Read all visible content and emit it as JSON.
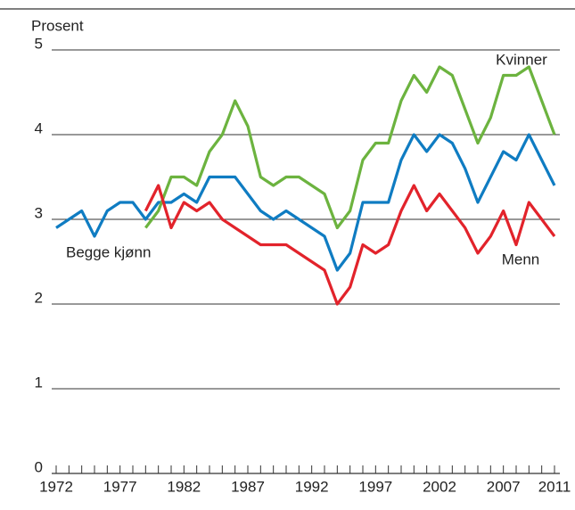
{
  "chart_data": {
    "type": "line",
    "y_label": "Prosent",
    "x": [
      1972,
      1973,
      1974,
      1975,
      1976,
      1977,
      1978,
      1979,
      1980,
      1981,
      1982,
      1983,
      1984,
      1985,
      1986,
      1987,
      1988,
      1989,
      1990,
      1991,
      1992,
      1993,
      1994,
      1995,
      1996,
      1997,
      1998,
      1999,
      2000,
      2001,
      2002,
      2003,
      2004,
      2005,
      2006,
      2007,
      2008,
      2009,
      2010,
      2011
    ],
    "series": [
      {
        "name": "Begge kjønn",
        "color": "#0f7cc2",
        "values": [
          2.9,
          3.0,
          3.1,
          2.8,
          3.1,
          3.2,
          3.2,
          3.0,
          3.2,
          3.2,
          3.3,
          3.2,
          3.5,
          3.5,
          3.5,
          3.3,
          3.1,
          3.0,
          3.1,
          3.0,
          2.9,
          2.8,
          2.4,
          2.6,
          3.2,
          3.2,
          3.2,
          3.7,
          4.0,
          3.8,
          4.0,
          3.9,
          3.6,
          3.2,
          3.5,
          3.8,
          3.7,
          4.0,
          3.7,
          3.4
        ]
      },
      {
        "name": "Kvinner",
        "color": "#6cb33f",
        "values": [
          null,
          null,
          null,
          null,
          null,
          null,
          null,
          2.9,
          3.1,
          3.5,
          3.5,
          3.4,
          3.8,
          4.0,
          4.4,
          4.1,
          3.5,
          3.4,
          3.5,
          3.5,
          3.4,
          3.3,
          2.9,
          3.1,
          3.7,
          3.9,
          3.9,
          4.4,
          4.7,
          4.5,
          4.8,
          4.7,
          4.3,
          3.9,
          4.2,
          4.7,
          4.7,
          4.8,
          4.4,
          4.0
        ]
      },
      {
        "name": "Menn",
        "color": "#e2232b",
        "values": [
          null,
          null,
          null,
          null,
          null,
          null,
          null,
          3.1,
          3.4,
          2.9,
          3.2,
          3.1,
          3.2,
          3.0,
          2.9,
          2.8,
          2.7,
          2.7,
          2.7,
          2.6,
          2.5,
          2.4,
          2.0,
          2.2,
          2.7,
          2.6,
          2.7,
          3.1,
          3.4,
          3.1,
          3.3,
          3.1,
          2.9,
          2.6,
          2.8,
          3.1,
          2.7,
          3.2,
          3.0,
          2.8
        ]
      }
    ],
    "xlim": [
      1972,
      2011
    ],
    "xticks": [
      1972,
      1977,
      1982,
      1987,
      1992,
      1997,
      2002,
      2007,
      2011
    ],
    "ylim": [
      0,
      5
    ],
    "yticks": [
      0,
      1,
      2,
      3,
      4,
      5
    ],
    "grid": true
  }
}
